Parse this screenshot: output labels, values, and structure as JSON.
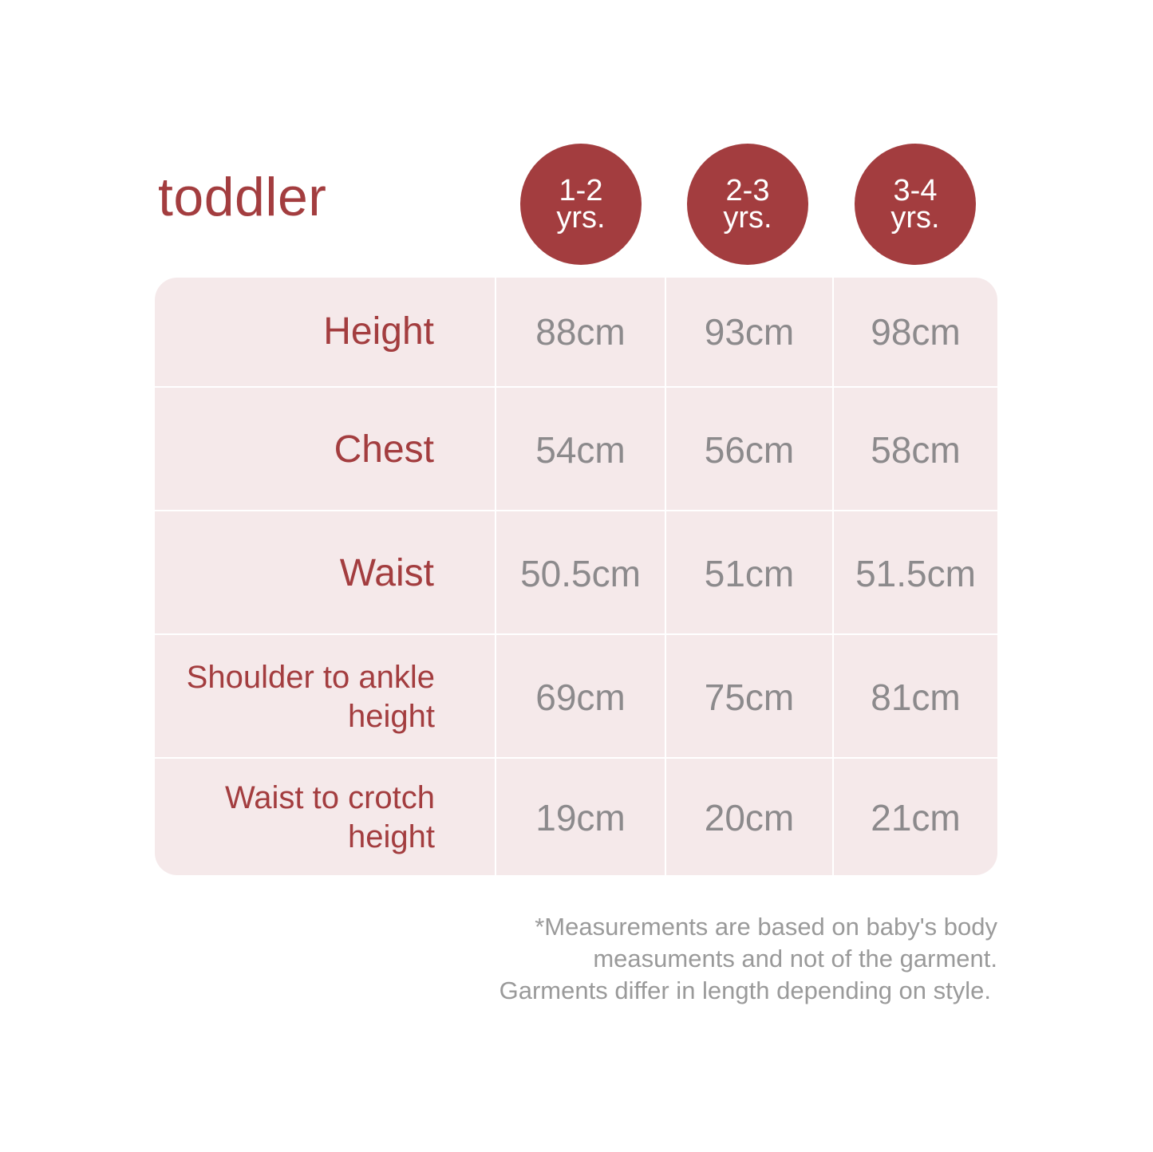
{
  "title": "toddler",
  "colors": {
    "accent": "#a33d3f",
    "table_bg": "#f5e9ea",
    "value_text": "#8c8a8c"
  },
  "sizes": [
    {
      "line1": "1-2",
      "line2": "yrs."
    },
    {
      "line1": "2-3",
      "line2": "yrs."
    },
    {
      "line1": "3-4",
      "line2": "yrs."
    }
  ],
  "rows": [
    {
      "label": "Height",
      "values": [
        "88cm",
        "93cm",
        "98cm"
      ]
    },
    {
      "label": "Chest",
      "values": [
        "54cm",
        "56cm",
        "58cm"
      ]
    },
    {
      "label": "Waist",
      "values": [
        "50.5cm",
        "51cm",
        "51.5cm"
      ]
    },
    {
      "label": "Shoulder to ankle height",
      "values": [
        "69cm",
        "75cm",
        "81cm"
      ]
    },
    {
      "label": "Waist to crotch height",
      "values": [
        "19cm",
        "20cm",
        "21cm"
      ]
    }
  ],
  "note": [
    "*Measurements are based on baby's body",
    "measuments and not of the garment.",
    "Garments differ in length depending on style."
  ]
}
